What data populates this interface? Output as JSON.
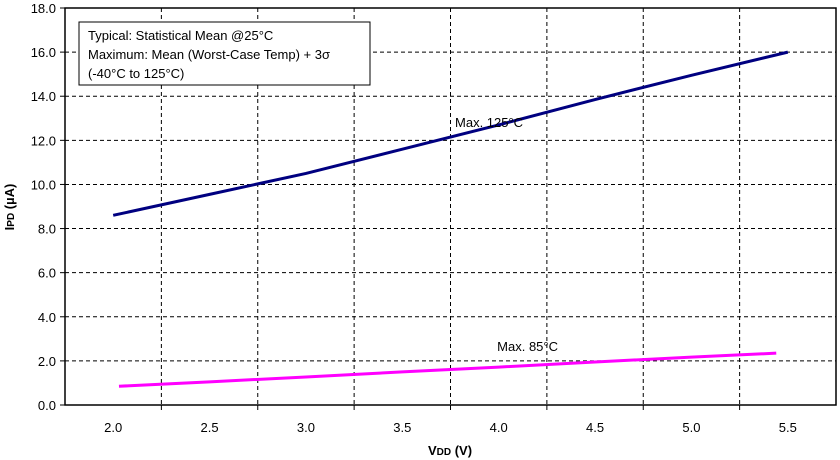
{
  "chart_data": {
    "type": "line",
    "title": "",
    "xlabel": {
      "main": "V",
      "sub": "DD",
      "unit": " (V)"
    },
    "ylabel": {
      "main": "I",
      "sub": "PD",
      "unit": " (µA)"
    },
    "xlim": [
      1.75,
      5.75
    ],
    "ylim": [
      0,
      18
    ],
    "xticks": [
      2.0,
      2.5,
      3.0,
      3.5,
      4.0,
      4.5,
      5.0,
      5.5
    ],
    "xtick_labels": [
      "2.0",
      "2.5",
      "3.0",
      "3.5",
      "4.0",
      "4.5",
      "5.0",
      "5.5"
    ],
    "yticks": [
      0,
      2,
      4,
      6,
      8,
      10,
      12,
      14,
      16,
      18
    ],
    "ytick_labels": [
      "0.0",
      "2.0",
      "4.0",
      "6.0",
      "8.0",
      "10.0",
      "12.0",
      "14.0",
      "16.0",
      "18.0"
    ],
    "x_gridlines": [
      2.25,
      2.75,
      3.25,
      3.75,
      4.25,
      4.75,
      5.25
    ],
    "grid": true,
    "note": [
      "Typical: Statistical Mean @25°C",
      "Maximum: Mean (Worst-Case Temp) + 3σ",
      "(-40°C to 125°C)"
    ],
    "series": [
      {
        "name": "Max. 125°C",
        "color": "#000080",
        "label_at": [
          3.95,
          12.6
        ],
        "x": [
          2.0,
          2.5,
          3.0,
          3.5,
          4.0,
          4.5,
          5.0,
          5.5
        ],
        "y": [
          8.6,
          9.55,
          10.5,
          11.6,
          12.7,
          13.85,
          14.95,
          16.0
        ]
      },
      {
        "name": "Max. 85°C",
        "color": "#FF00FF",
        "label_at": [
          4.15,
          2.45
        ],
        "x": [
          2.03,
          2.5,
          3.0,
          3.5,
          4.0,
          4.5,
          5.0,
          5.44
        ],
        "y": [
          0.85,
          1.05,
          1.27,
          1.5,
          1.72,
          1.95,
          2.17,
          2.35
        ]
      }
    ]
  }
}
